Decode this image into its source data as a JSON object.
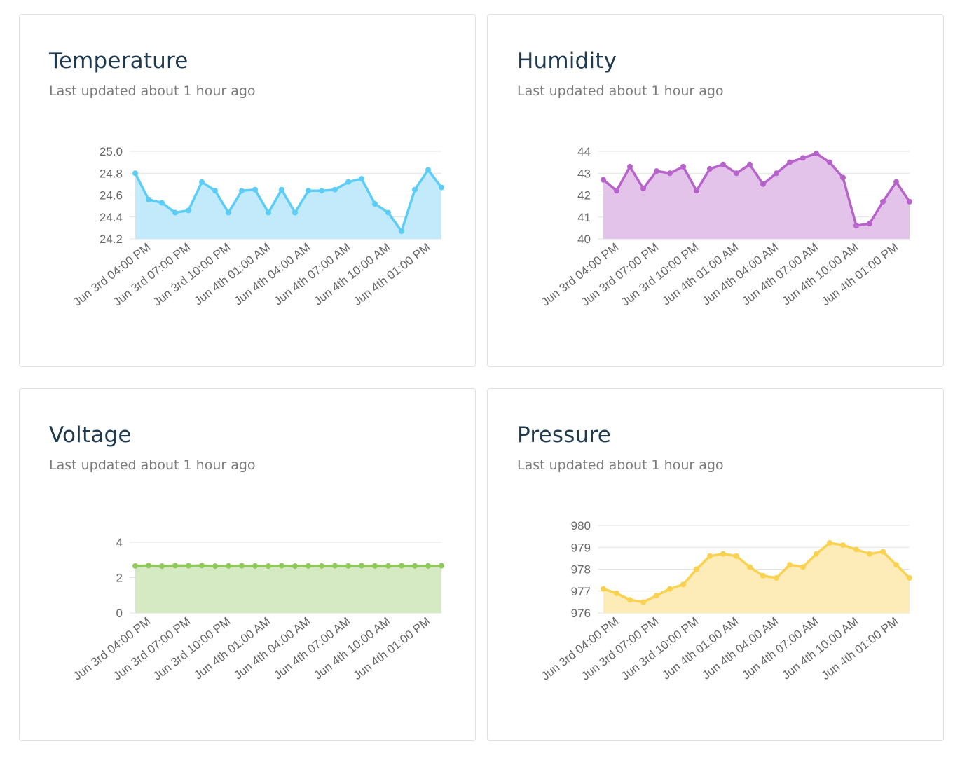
{
  "cards": [
    {
      "title": "Temperature",
      "updated": "Last updated about 1 hour ago",
      "color": "#5bcdf7",
      "fill": "#c2eafb",
      "chart_data": {
        "type": "area",
        "x_ticks": [
          "Jun 3rd 04:00 PM",
          "Jun 3rd 07:00 PM",
          "Jun 3rd 10:00 PM",
          "Jun 4th 01:00 AM",
          "Jun 4th 04:00 AM",
          "Jun 4th 07:00 AM",
          "Jun 4th 10:00 AM",
          "Jun 4th 01:00 PM"
        ],
        "y_ticks": [
          "25.0",
          "24.8",
          "24.6",
          "24.4",
          "24.2"
        ],
        "ylim": [
          24.2,
          25.0
        ],
        "values": [
          24.8,
          24.56,
          24.53,
          24.44,
          24.46,
          24.72,
          24.64,
          24.44,
          24.64,
          24.65,
          24.44,
          24.65,
          24.44,
          24.64,
          24.64,
          24.65,
          24.72,
          24.75,
          24.52,
          24.44,
          24.27,
          24.65,
          24.83,
          24.67
        ]
      }
    },
    {
      "title": "Humidity",
      "updated": "Last updated about 1 hour ago",
      "color": "#b863cb",
      "fill": "#e3c3ea",
      "chart_data": {
        "type": "area",
        "x_ticks": [
          "Jun 3rd 04:00 PM",
          "Jun 3rd 07:00 PM",
          "Jun 3rd 10:00 PM",
          "Jun 4th 01:00 AM",
          "Jun 4th 04:00 AM",
          "Jun 4th 07:00 AM",
          "Jun 4th 10:00 AM",
          "Jun 4th 01:00 PM"
        ],
        "y_ticks": [
          "44",
          "43",
          "42",
          "41",
          "40"
        ],
        "ylim": [
          40,
          44
        ],
        "values": [
          42.7,
          42.2,
          43.3,
          42.3,
          43.1,
          43.0,
          43.3,
          42.2,
          43.2,
          43.4,
          43.0,
          43.4,
          42.5,
          43.0,
          43.5,
          43.7,
          43.9,
          43.5,
          42.8,
          40.6,
          40.7,
          41.7,
          42.6,
          41.7
        ]
      }
    },
    {
      "title": "Voltage",
      "updated": "Last updated about 1 hour ago",
      "color": "#8fc95a",
      "fill": "#d5eac2",
      "chart_data": {
        "type": "area",
        "x_ticks": [
          "Jun 3rd 04:00 PM",
          "Jun 3rd 07:00 PM",
          "Jun 3rd 10:00 PM",
          "Jun 4th 01:00 AM",
          "Jun 4th 04:00 AM",
          "Jun 4th 07:00 AM",
          "Jun 4th 10:00 AM",
          "Jun 4th 01:00 PM"
        ],
        "y_ticks": [
          "4",
          "2",
          "0"
        ],
        "ylim": [
          0,
          4
        ],
        "values": [
          2.66,
          2.68,
          2.65,
          2.68,
          2.67,
          2.68,
          2.65,
          2.66,
          2.67,
          2.66,
          2.65,
          2.67,
          2.65,
          2.66,
          2.66,
          2.67,
          2.66,
          2.67,
          2.66,
          2.66,
          2.67,
          2.66,
          2.66,
          2.67
        ]
      }
    },
    {
      "title": "Pressure",
      "updated": "Last updated about 1 hour ago",
      "color": "#fad24f",
      "fill": "#feecb8",
      "chart_data": {
        "type": "area",
        "x_ticks": [
          "Jun 3rd 04:00 PM",
          "Jun 3rd 07:00 PM",
          "Jun 3rd 10:00 PM",
          "Jun 4th 01:00 AM",
          "Jun 4th 04:00 AM",
          "Jun 4th 07:00 AM",
          "Jun 4th 10:00 AM",
          "Jun 4th 01:00 PM"
        ],
        "y_ticks": [
          "980",
          "979",
          "978",
          "977",
          "976"
        ],
        "ylim": [
          976,
          980
        ],
        "values": [
          977.1,
          976.9,
          976.6,
          976.5,
          976.8,
          977.1,
          977.3,
          978.0,
          978.6,
          978.7,
          978.6,
          978.1,
          977.7,
          977.6,
          978.2,
          978.1,
          978.7,
          979.2,
          979.1,
          978.9,
          978.7,
          978.8,
          978.2,
          977.6
        ]
      }
    }
  ]
}
